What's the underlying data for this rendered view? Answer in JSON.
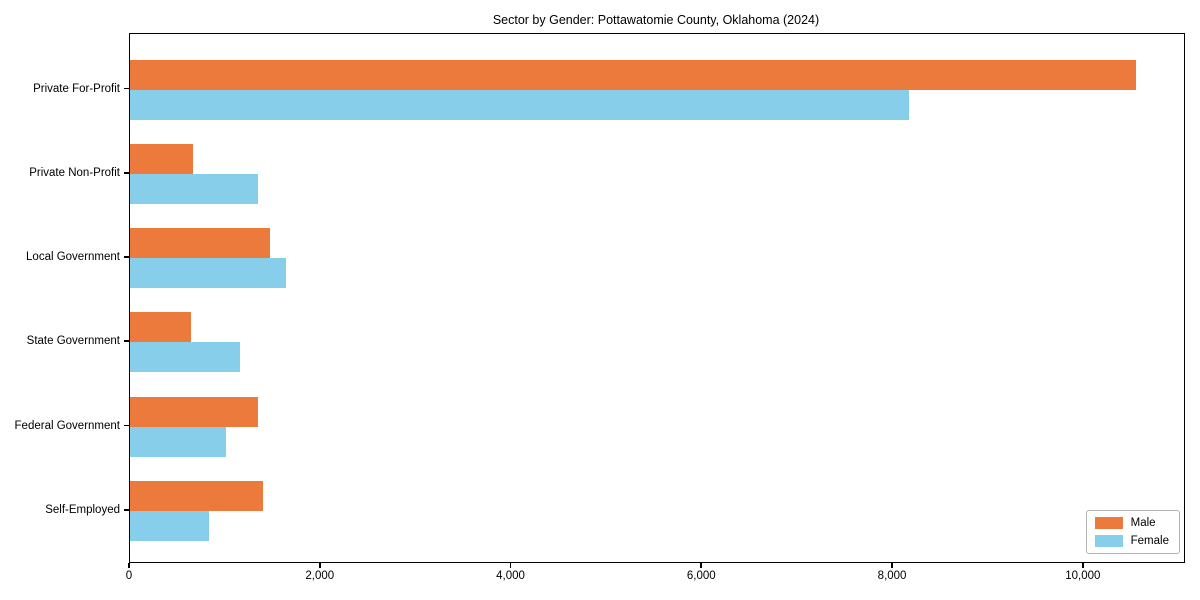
{
  "chart_data": {
    "type": "bar",
    "orientation": "horizontal",
    "title": "Sector by Gender: Pottawatomie County, Oklahoma (2024)",
    "xlabel": "",
    "ylabel": "",
    "categories": [
      "Private For-Profit",
      "Private Non-Profit",
      "Local Government",
      "State Government",
      "Federal Government",
      "Self-Employed"
    ],
    "series": [
      {
        "name": "Male",
        "color": "#EC7A3D",
        "values": [
          10550,
          660,
          1470,
          640,
          1340,
          1390
        ]
      },
      {
        "name": "Female",
        "color": "#87CEEB",
        "values": [
          8170,
          1340,
          1640,
          1150,
          1010,
          830
        ]
      }
    ],
    "xlim": [
      0,
      11050
    ],
    "xticks": [
      0,
      2000,
      4000,
      6000,
      8000,
      10000
    ],
    "xtick_labels": [
      "0",
      "2,000",
      "4,000",
      "6,000",
      "8,000",
      "10,000"
    ],
    "grid": false,
    "legend_position": "lower right"
  }
}
